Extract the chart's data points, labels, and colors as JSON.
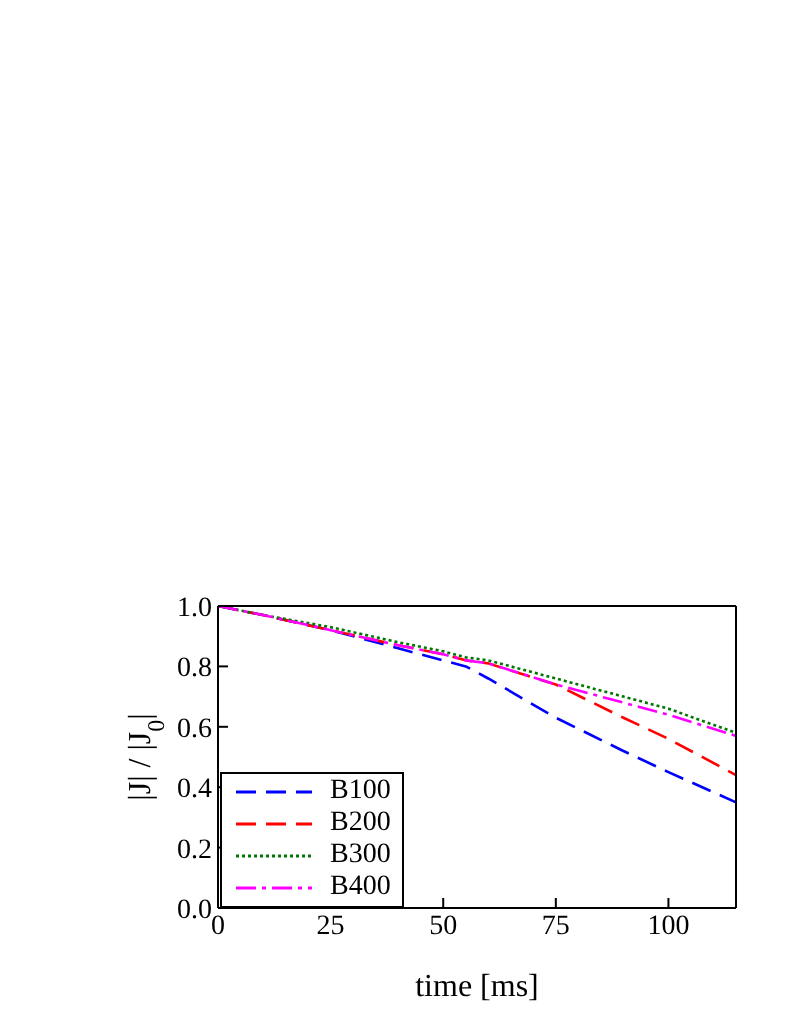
{
  "chart_data": {
    "type": "line",
    "xlabel": "time [ms]",
    "ylabel": "|J| / |J$_{0}$|",
    "x": [
      0,
      10,
      25,
      40,
      50,
      55,
      60,
      75,
      90,
      100,
      115
    ],
    "series": [
      {
        "name": "B100",
        "color": "#0000ff",
        "line_style": "dashed",
        "values": [
          1.0,
          0.97,
          0.92,
          0.86,
          0.82,
          0.8,
          0.76,
          0.63,
          0.52,
          0.45,
          0.35
        ]
      },
      {
        "name": "B200",
        "color": "#ff0000",
        "line_style": "dashed",
        "values": [
          1.0,
          0.97,
          0.92,
          0.87,
          0.84,
          0.82,
          0.81,
          0.74,
          0.63,
          0.56,
          0.44
        ]
      },
      {
        "name": "B300",
        "color": "#007700",
        "line_style": "dotted",
        "values": [
          1.0,
          0.97,
          0.93,
          0.88,
          0.85,
          0.83,
          0.82,
          0.76,
          0.7,
          0.66,
          0.58
        ]
      },
      {
        "name": "B400",
        "color": "#ff00ff",
        "line_style": "dashdot",
        "values": [
          1.0,
          0.97,
          0.92,
          0.87,
          0.84,
          0.82,
          0.81,
          0.74,
          0.68,
          0.64,
          0.57
        ]
      }
    ],
    "xlim": [
      0,
      115
    ],
    "xticks": [
      0,
      25,
      50,
      75,
      100
    ],
    "ylim": [
      0,
      1
    ],
    "yticks": [
      {
        "value": 0,
        "label": "0.0"
      },
      {
        "value": 0.2,
        "label": "0.2"
      },
      {
        "value": 0.4,
        "label": "0.4"
      },
      {
        "value": 0.6,
        "label": "0.6"
      },
      {
        "value": 0.8,
        "label": "0.8"
      },
      {
        "value": 1,
        "label": "1.0"
      }
    ],
    "legend": "bottom left",
    "marker": "none"
  }
}
